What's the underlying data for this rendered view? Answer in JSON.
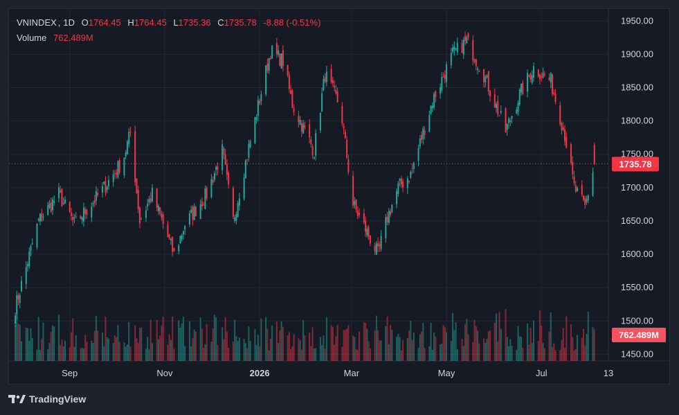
{
  "header": {
    "symbol": "VNINDEX",
    "interval": "1D",
    "open_label": "O",
    "open": "1764.45",
    "high_label": "H",
    "high": "1764.45",
    "low_label": "L",
    "low": "1735.36",
    "close_label": "C",
    "close": "1735.78",
    "change": "-8.88 (-0.51%)",
    "volume_label": "Volume",
    "volume": "762.489M"
  },
  "price_tag": "1735.78",
  "volume_tag": "762.489M",
  "brand": "TradingView",
  "colors": {
    "up": "#26a69a",
    "down": "#f23645",
    "background": "#161a25",
    "grid": "#232733",
    "text": "#d1d4dc"
  },
  "chart_data": {
    "type": "candlestick",
    "ylim": [
      1440,
      1968
    ],
    "y_ticks": [
      "1950.00",
      "1900.00",
      "1850.00",
      "1800.00",
      "1750.00",
      "1700.00",
      "1650.00",
      "1600.00",
      "1550.00",
      "1500.00",
      "1450.00"
    ],
    "x_ticks": [
      "Sep",
      "Nov",
      "2026",
      "Mar",
      "May",
      "Jul",
      "13"
    ],
    "last_price": 1735.78,
    "close_path_keypoints": [
      [
        "2025-07-28",
        1520
      ],
      [
        "2025-08-12",
        1650
      ],
      [
        "2025-08-25",
        1690
      ],
      [
        "2025-09-04",
        1645
      ],
      [
        "2025-09-20",
        1690
      ],
      [
        "2025-10-05",
        1740
      ],
      [
        "2025-10-10",
        1782
      ],
      [
        "2025-10-16",
        1650
      ],
      [
        "2025-10-24",
        1690
      ],
      [
        "2025-11-07",
        1600
      ],
      [
        "2025-11-14",
        1645
      ],
      [
        "2025-11-28",
        1690
      ],
      [
        "2025-12-08",
        1755
      ],
      [
        "2025-12-15",
        1650
      ],
      [
        "2025-12-25",
        1760
      ],
      [
        "2026-01-08",
        1905
      ],
      [
        "2026-01-16",
        1890
      ],
      [
        "2026-01-22",
        1825
      ],
      [
        "2026-02-05",
        1755
      ],
      [
        "2026-02-12",
        1870
      ],
      [
        "2026-02-22",
        1820
      ],
      [
        "2026-03-02",
        1675
      ],
      [
        "2026-03-18",
        1600
      ],
      [
        "2026-03-24",
        1655
      ],
      [
        "2026-03-31",
        1700
      ],
      [
        "2026-04-08",
        1720
      ],
      [
        "2026-04-22",
        1830
      ],
      [
        "2026-05-05",
        1900
      ],
      [
        "2026-05-14",
        1920
      ],
      [
        "2026-05-25",
        1870
      ],
      [
        "2026-06-08",
        1785
      ],
      [
        "2026-06-17",
        1840
      ],
      [
        "2026-06-26",
        1880
      ],
      [
        "2026-07-07",
        1860
      ],
      [
        "2026-07-16",
        1780
      ],
      [
        "2026-07-22",
        1700
      ],
      [
        "2026-07-29",
        1670
      ],
      [
        "2026-08-04",
        1735.78
      ]
    ],
    "volume_million_range": [
      380,
      1150
    ],
    "last_volume_million": 762.489
  }
}
